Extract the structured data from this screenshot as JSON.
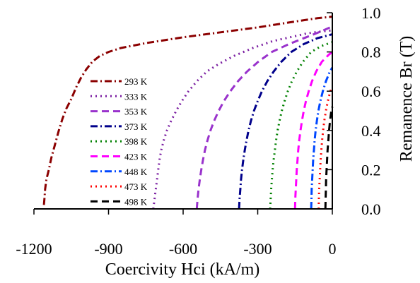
{
  "chart_data": {
    "type": "line",
    "xlabel": "Coercivity Hci (kA/m)",
    "ylabel": "Remanence Br (T)",
    "xlim": [
      -1200,
      0
    ],
    "ylim": [
      0.0,
      1.0
    ],
    "x_ticks": [
      -1200,
      -900,
      -600,
      -300,
      0
    ],
    "x_tick_labels": [
      "-1200",
      "-900",
      "-600",
      "-300",
      "0"
    ],
    "y_ticks": [
      0.0,
      0.2,
      0.4,
      0.6,
      0.8,
      1.0
    ],
    "y_tick_labels": [
      "0.0",
      "0.2",
      "0.4",
      "0.6",
      "0.8",
      "1.0"
    ],
    "y_axis_position": "right",
    "legend_position": "left-center",
    "grid": false,
    "series": [
      {
        "name": "293 K",
        "color": "#8b0000",
        "dash": "dashdot",
        "points": [
          [
            -1160,
            0.02
          ],
          [
            -1158,
            0.05
          ],
          [
            -1155,
            0.1
          ],
          [
            -1150,
            0.15
          ],
          [
            -1140,
            0.2
          ],
          [
            -1130,
            0.26
          ],
          [
            -1115,
            0.33
          ],
          [
            -1100,
            0.4
          ],
          [
            -1085,
            0.46
          ],
          [
            -1070,
            0.51
          ],
          [
            -1050,
            0.56
          ],
          [
            -1030,
            0.62
          ],
          [
            -1010,
            0.67
          ],
          [
            -990,
            0.71
          ],
          [
            -965,
            0.75
          ],
          [
            -935,
            0.78
          ],
          [
            -900,
            0.8
          ],
          [
            -850,
            0.82
          ],
          [
            -750,
            0.845
          ],
          [
            -600,
            0.875
          ],
          [
            -450,
            0.9
          ],
          [
            -300,
            0.925
          ],
          [
            -150,
            0.955
          ],
          [
            -60,
            0.972
          ],
          [
            0,
            0.98
          ]
        ]
      },
      {
        "name": "333 K",
        "color": "#7b1fa2",
        "dash": "dot",
        "points": [
          [
            -720,
            0.0
          ],
          [
            -715,
            0.05
          ],
          [
            -710,
            0.1
          ],
          [
            -705,
            0.15
          ],
          [
            -700,
            0.2
          ],
          [
            -695,
            0.25
          ],
          [
            -688,
            0.3
          ],
          [
            -678,
            0.35
          ],
          [
            -665,
            0.4
          ],
          [
            -648,
            0.45
          ],
          [
            -628,
            0.5
          ],
          [
            -605,
            0.55
          ],
          [
            -578,
            0.6
          ],
          [
            -545,
            0.65
          ],
          [
            -505,
            0.7
          ],
          [
            -455,
            0.74
          ],
          [
            -395,
            0.78
          ],
          [
            -320,
            0.82
          ],
          [
            -240,
            0.855
          ],
          [
            -170,
            0.875
          ],
          [
            -100,
            0.895
          ],
          [
            -40,
            0.905
          ],
          [
            0,
            0.91
          ]
        ]
      },
      {
        "name": "353 K",
        "color": "#9932cc",
        "dash": "dash",
        "points": [
          [
            -545,
            0.0
          ],
          [
            -542,
            0.05
          ],
          [
            -538,
            0.1
          ],
          [
            -533,
            0.15
          ],
          [
            -527,
            0.2
          ],
          [
            -520,
            0.25
          ],
          [
            -512,
            0.3
          ],
          [
            -502,
            0.35
          ],
          [
            -490,
            0.4
          ],
          [
            -475,
            0.45
          ],
          [
            -457,
            0.5
          ],
          [
            -436,
            0.55
          ],
          [
            -410,
            0.6
          ],
          [
            -380,
            0.65
          ],
          [
            -343,
            0.7
          ],
          [
            -298,
            0.75
          ],
          [
            -243,
            0.8
          ],
          [
            -175,
            0.84
          ],
          [
            -105,
            0.875
          ],
          [
            -45,
            0.905
          ],
          [
            0,
            0.93
          ]
        ]
      },
      {
        "name": "373 K",
        "color": "#00008b",
        "dash": "dashdot",
        "points": [
          [
            -375,
            0.0
          ],
          [
            -373,
            0.05
          ],
          [
            -370,
            0.1
          ],
          [
            -367,
            0.15
          ],
          [
            -363,
            0.2
          ],
          [
            -358,
            0.25
          ],
          [
            -352,
            0.3
          ],
          [
            -345,
            0.35
          ],
          [
            -337,
            0.4
          ],
          [
            -327,
            0.45
          ],
          [
            -315,
            0.5
          ],
          [
            -300,
            0.55
          ],
          [
            -283,
            0.6
          ],
          [
            -262,
            0.65
          ],
          [
            -236,
            0.7
          ],
          [
            -205,
            0.75
          ],
          [
            -165,
            0.8
          ],
          [
            -115,
            0.84
          ],
          [
            -60,
            0.87
          ],
          [
            0,
            0.89
          ]
        ]
      },
      {
        "name": "398 K",
        "color": "#008000",
        "dash": "dot",
        "points": [
          [
            -250,
            0.0
          ],
          [
            -248,
            0.05
          ],
          [
            -246,
            0.1
          ],
          [
            -243,
            0.15
          ],
          [
            -240,
            0.2
          ],
          [
            -236,
            0.25
          ],
          [
            -231,
            0.3
          ],
          [
            -226,
            0.35
          ],
          [
            -220,
            0.4
          ],
          [
            -212,
            0.45
          ],
          [
            -203,
            0.5
          ],
          [
            -192,
            0.55
          ],
          [
            -179,
            0.6
          ],
          [
            -163,
            0.65
          ],
          [
            -143,
            0.7
          ],
          [
            -118,
            0.75
          ],
          [
            -85,
            0.8
          ],
          [
            -45,
            0.83
          ],
          [
            0,
            0.85
          ]
        ]
      },
      {
        "name": "423 K",
        "color": "#ff00ff",
        "dash": "dash",
        "points": [
          [
            -150,
            0.0
          ],
          [
            -149,
            0.05
          ],
          [
            -147,
            0.1
          ],
          [
            -145,
            0.15
          ],
          [
            -143,
            0.2
          ],
          [
            -140,
            0.25
          ],
          [
            -137,
            0.3
          ],
          [
            -133,
            0.35
          ],
          [
            -128,
            0.4
          ],
          [
            -122,
            0.45
          ],
          [
            -115,
            0.5
          ],
          [
            -106,
            0.55
          ],
          [
            -95,
            0.6
          ],
          [
            -82,
            0.65
          ],
          [
            -65,
            0.7
          ],
          [
            -42,
            0.75
          ],
          [
            -15,
            0.785
          ],
          [
            0,
            0.8
          ]
        ]
      },
      {
        "name": "448 K",
        "color": "#0047ff",
        "dash": "dashdot",
        "points": [
          [
            -85,
            0.0
          ],
          [
            -84,
            0.05
          ],
          [
            -83,
            0.1
          ],
          [
            -81,
            0.15
          ],
          [
            -79,
            0.2
          ],
          [
            -77,
            0.25
          ],
          [
            -74,
            0.3
          ],
          [
            -71,
            0.35
          ],
          [
            -67,
            0.4
          ],
          [
            -62,
            0.45
          ],
          [
            -56,
            0.5
          ],
          [
            -48,
            0.55
          ],
          [
            -38,
            0.6
          ],
          [
            -26,
            0.65
          ],
          [
            -10,
            0.7
          ],
          [
            0,
            0.72
          ]
        ]
      },
      {
        "name": "473 K",
        "color": "#ff0000",
        "dash": "dot",
        "points": [
          [
            -55,
            0.0
          ],
          [
            -54,
            0.05
          ],
          [
            -53,
            0.1
          ],
          [
            -51,
            0.15
          ],
          [
            -49,
            0.2
          ],
          [
            -47,
            0.25
          ],
          [
            -44,
            0.3
          ],
          [
            -41,
            0.35
          ],
          [
            -37,
            0.4
          ],
          [
            -32,
            0.45
          ],
          [
            -26,
            0.5
          ],
          [
            -18,
            0.55
          ],
          [
            -8,
            0.6
          ],
          [
            0,
            0.62
          ]
        ]
      },
      {
        "name": "498 K",
        "color": "#000000",
        "dash": "dash",
        "points": [
          [
            -28,
            0.0
          ],
          [
            -27,
            0.05
          ],
          [
            -26,
            0.1
          ],
          [
            -25,
            0.15
          ],
          [
            -23,
            0.2
          ],
          [
            -21,
            0.25
          ],
          [
            -19,
            0.3
          ],
          [
            -16,
            0.35
          ],
          [
            -13,
            0.4
          ],
          [
            -9,
            0.45
          ],
          [
            -4,
            0.5
          ],
          [
            0,
            0.52
          ]
        ]
      }
    ]
  }
}
